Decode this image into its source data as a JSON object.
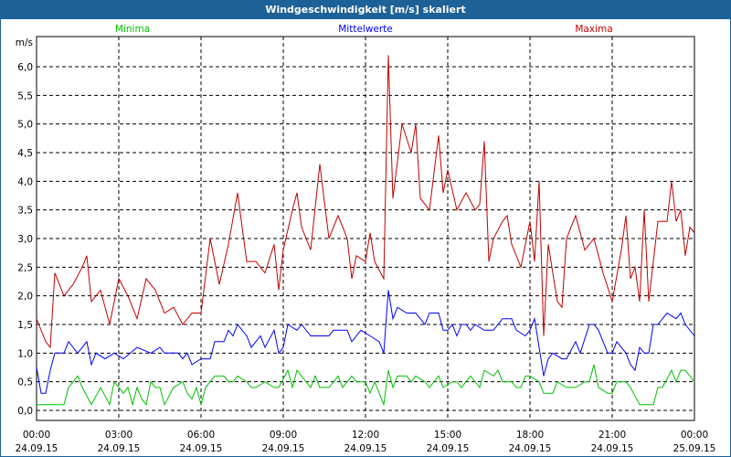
{
  "window": {
    "title": "Windgeschwindigkeit [m/s] skaliert"
  },
  "chart_data": {
    "type": "line",
    "title": "Windgeschwindigkeit [m/s] skaliert",
    "ylabel": "m/s",
    "ylim": [
      0,
      6.5
    ],
    "yticks": [
      "0,0",
      "0,5",
      "1,0",
      "1,5",
      "2,0",
      "2,5",
      "3,0",
      "3,5",
      "4,0",
      "4,5",
      "5,0",
      "5,5",
      "6,0"
    ],
    "xticks": [
      {
        "time": "00:00",
        "date": "24.09.15"
      },
      {
        "time": "03:00",
        "date": "24.09.15"
      },
      {
        "time": "06:00",
        "date": "24.09.15"
      },
      {
        "time": "09:00",
        "date": "24.09.15"
      },
      {
        "time": "12:00",
        "date": "24.09.15"
      },
      {
        "time": "15:00",
        "date": "24.09.15"
      },
      {
        "time": "18:00",
        "date": "24.09.15"
      },
      {
        "time": "21:00",
        "date": "24.09.15"
      },
      {
        "time": "00:00",
        "date": "25.09.15"
      }
    ],
    "grid": true,
    "legend_placement": "top",
    "series": [
      {
        "name": "Minima",
        "color": "#00c000",
        "points": [
          [
            "00:00",
            0.1
          ],
          [
            "01:00",
            0.1
          ],
          [
            "01:10",
            0.4
          ],
          [
            "01:30",
            0.6
          ],
          [
            "01:40",
            0.4
          ],
          [
            "02:00",
            0.1
          ],
          [
            "02:20",
            0.4
          ],
          [
            "02:40",
            0.1
          ],
          [
            "02:50",
            0.5
          ],
          [
            "03:10",
            0.3
          ],
          [
            "03:20",
            0.4
          ],
          [
            "03:30",
            0.1
          ],
          [
            "03:40",
            0.4
          ],
          [
            "03:50",
            0.2
          ],
          [
            "04:00",
            0.1
          ],
          [
            "04:10",
            0.5
          ],
          [
            "04:20",
            0.4
          ],
          [
            "04:30",
            0.4
          ],
          [
            "04:40",
            0.1
          ],
          [
            "05:00",
            0.4
          ],
          [
            "05:20",
            0.5
          ],
          [
            "05:30",
            0.3
          ],
          [
            "05:40",
            0.2
          ],
          [
            "05:50",
            0.4
          ],
          [
            "06:00",
            0.1
          ],
          [
            "06:10",
            0.4
          ],
          [
            "06:30",
            0.6
          ],
          [
            "06:50",
            0.6
          ],
          [
            "07:00",
            0.5
          ],
          [
            "07:10",
            0.5
          ],
          [
            "07:20",
            0.6
          ],
          [
            "07:40",
            0.5
          ],
          [
            "07:50",
            0.4
          ],
          [
            "08:00",
            0.4
          ],
          [
            "08:20",
            0.5
          ],
          [
            "08:40",
            0.4
          ],
          [
            "08:50",
            0.4
          ],
          [
            "09:10",
            0.7
          ],
          [
            "09:20",
            0.4
          ],
          [
            "09:30",
            0.7
          ],
          [
            "09:40",
            0.6
          ],
          [
            "10:00",
            0.4
          ],
          [
            "10:10",
            0.6
          ],
          [
            "10:20",
            0.4
          ],
          [
            "10:40",
            0.4
          ],
          [
            "11:00",
            0.6
          ],
          [
            "11:10",
            0.4
          ],
          [
            "11:30",
            0.6
          ],
          [
            "11:40",
            0.5
          ],
          [
            "12:00",
            0.5
          ],
          [
            "12:10",
            0.3
          ],
          [
            "12:20",
            0.5
          ],
          [
            "12:40",
            0.1
          ],
          [
            "12:50",
            0.7
          ],
          [
            "13:00",
            0.4
          ],
          [
            "13:10",
            0.6
          ],
          [
            "13:30",
            0.6
          ],
          [
            "13:40",
            0.5
          ],
          [
            "13:50",
            0.6
          ],
          [
            "14:10",
            0.5
          ],
          [
            "14:20",
            0.4
          ],
          [
            "14:30",
            0.5
          ],
          [
            "14:40",
            0.6
          ],
          [
            "14:50",
            0.4
          ],
          [
            "15:10",
            0.5
          ],
          [
            "15:20",
            0.5
          ],
          [
            "15:30",
            0.4
          ],
          [
            "15:40",
            0.5
          ],
          [
            "15:50",
            0.6
          ],
          [
            "16:10",
            0.4
          ],
          [
            "16:20",
            0.7
          ],
          [
            "16:40",
            0.6
          ],
          [
            "16:50",
            0.7
          ],
          [
            "17:00",
            0.5
          ],
          [
            "17:20",
            0.5
          ],
          [
            "17:30",
            0.4
          ],
          [
            "17:40",
            0.4
          ],
          [
            "17:50",
            0.6
          ],
          [
            "18:00",
            0.6
          ],
          [
            "18:20",
            0.5
          ],
          [
            "18:30",
            0.3
          ],
          [
            "18:50",
            0.3
          ],
          [
            "19:00",
            0.5
          ],
          [
            "19:20",
            0.4
          ],
          [
            "19:40",
            0.4
          ],
          [
            "20:00",
            0.5
          ],
          [
            "20:10",
            0.5
          ],
          [
            "20:20",
            0.8
          ],
          [
            "20:30",
            0.4
          ],
          [
            "20:50",
            0.3
          ],
          [
            "21:00",
            0.3
          ],
          [
            "21:10",
            0.5
          ],
          [
            "21:30",
            0.5
          ],
          [
            "21:40",
            0.4
          ],
          [
            "22:00",
            0.1
          ],
          [
            "22:30",
            0.1
          ],
          [
            "22:40",
            0.4
          ],
          [
            "22:50",
            0.4
          ],
          [
            "23:10",
            0.7
          ],
          [
            "23:20",
            0.5
          ],
          [
            "23:30",
            0.7
          ],
          [
            "23:40",
            0.7
          ],
          [
            "23:50",
            0.6
          ],
          [
            "24:00",
            0.5
          ]
        ]
      },
      {
        "name": "Mittelwerte",
        "color": "#0000ff",
        "points": [
          [
            "00:00",
            0.75
          ],
          [
            "00:10",
            0.3
          ],
          [
            "00:20",
            0.3
          ],
          [
            "00:30",
            0.7
          ],
          [
            "00:40",
            1.0
          ],
          [
            "01:00",
            1.0
          ],
          [
            "01:10",
            1.2
          ],
          [
            "01:30",
            1.0
          ],
          [
            "01:50",
            1.2
          ],
          [
            "02:00",
            0.8
          ],
          [
            "02:10",
            1.0
          ],
          [
            "02:30",
            0.9
          ],
          [
            "02:50",
            1.0
          ],
          [
            "03:10",
            0.9
          ],
          [
            "03:40",
            1.1
          ],
          [
            "04:10",
            1.0
          ],
          [
            "04:30",
            1.1
          ],
          [
            "04:40",
            1.0
          ],
          [
            "05:10",
            1.0
          ],
          [
            "05:20",
            0.9
          ],
          [
            "05:30",
            1.0
          ],
          [
            "05:40",
            0.8
          ],
          [
            "06:00",
            0.9
          ],
          [
            "06:20",
            0.9
          ],
          [
            "06:30",
            1.2
          ],
          [
            "06:50",
            1.2
          ],
          [
            "07:00",
            1.4
          ],
          [
            "07:10",
            1.3
          ],
          [
            "07:20",
            1.5
          ],
          [
            "07:40",
            1.3
          ],
          [
            "07:50",
            1.1
          ],
          [
            "08:10",
            1.3
          ],
          [
            "08:20",
            1.1
          ],
          [
            "08:40",
            1.4
          ],
          [
            "08:50",
            1.0
          ],
          [
            "09:00",
            1.1
          ],
          [
            "09:10",
            1.5
          ],
          [
            "09:30",
            1.4
          ],
          [
            "09:40",
            1.5
          ],
          [
            "10:00",
            1.3
          ],
          [
            "10:40",
            1.3
          ],
          [
            "10:50",
            1.4
          ],
          [
            "11:20",
            1.4
          ],
          [
            "11:30",
            1.2
          ],
          [
            "11:50",
            1.4
          ],
          [
            "12:10",
            1.3
          ],
          [
            "12:30",
            1.2
          ],
          [
            "12:40",
            1.0
          ],
          [
            "12:50",
            2.1
          ],
          [
            "13:00",
            1.6
          ],
          [
            "13:10",
            1.8
          ],
          [
            "13:30",
            1.7
          ],
          [
            "13:50",
            1.7
          ],
          [
            "14:00",
            1.6
          ],
          [
            "14:10",
            1.5
          ],
          [
            "14:20",
            1.7
          ],
          [
            "14:40",
            1.7
          ],
          [
            "14:50",
            1.4
          ],
          [
            "15:00",
            1.4
          ],
          [
            "15:10",
            1.5
          ],
          [
            "15:20",
            1.3
          ],
          [
            "15:30",
            1.5
          ],
          [
            "15:40",
            1.5
          ],
          [
            "15:50",
            1.4
          ],
          [
            "16:00",
            1.5
          ],
          [
            "16:20",
            1.4
          ],
          [
            "16:40",
            1.4
          ],
          [
            "17:00",
            1.6
          ],
          [
            "17:20",
            1.6
          ],
          [
            "17:30",
            1.4
          ],
          [
            "17:50",
            1.3
          ],
          [
            "18:00",
            1.4
          ],
          [
            "18:10",
            1.6
          ],
          [
            "18:30",
            0.6
          ],
          [
            "18:40",
            0.9
          ],
          [
            "18:50",
            1.0
          ],
          [
            "19:10",
            0.9
          ],
          [
            "19:20",
            0.9
          ],
          [
            "19:40",
            1.2
          ],
          [
            "19:50",
            1.0
          ],
          [
            "20:10",
            1.5
          ],
          [
            "20:20",
            1.5
          ],
          [
            "20:30",
            1.4
          ],
          [
            "20:50",
            1.0
          ],
          [
            "21:00",
            1.0
          ],
          [
            "21:10",
            1.2
          ],
          [
            "21:30",
            1.0
          ],
          [
            "21:40",
            0.8
          ],
          [
            "21:50",
            0.7
          ],
          [
            "22:00",
            1.1
          ],
          [
            "22:10",
            1.0
          ],
          [
            "22:20",
            1.0
          ],
          [
            "22:30",
            1.5
          ],
          [
            "22:40",
            1.5
          ],
          [
            "22:50",
            1.6
          ],
          [
            "23:00",
            1.7
          ],
          [
            "23:20",
            1.6
          ],
          [
            "23:30",
            1.7
          ],
          [
            "23:40",
            1.5
          ],
          [
            "24:00",
            1.3
          ]
        ]
      },
      {
        "name": "Maxima",
        "color": "#c00000",
        "points": [
          [
            "00:00",
            1.6
          ],
          [
            "00:20",
            1.2
          ],
          [
            "00:30",
            1.1
          ],
          [
            "00:40",
            2.4
          ],
          [
            "01:00",
            2.0
          ],
          [
            "01:20",
            2.2
          ],
          [
            "01:40",
            2.5
          ],
          [
            "01:50",
            2.7
          ],
          [
            "02:00",
            1.9
          ],
          [
            "02:20",
            2.1
          ],
          [
            "02:40",
            1.5
          ],
          [
            "03:00",
            2.3
          ],
          [
            "03:20",
            2.0
          ],
          [
            "03:40",
            1.6
          ],
          [
            "04:00",
            2.3
          ],
          [
            "04:20",
            2.1
          ],
          [
            "04:40",
            1.7
          ],
          [
            "05:00",
            1.8
          ],
          [
            "05:20",
            1.5
          ],
          [
            "05:40",
            1.7
          ],
          [
            "06:00",
            1.7
          ],
          [
            "06:20",
            3.0
          ],
          [
            "06:40",
            2.2
          ],
          [
            "07:00",
            2.9
          ],
          [
            "07:20",
            3.8
          ],
          [
            "07:40",
            2.6
          ],
          [
            "08:00",
            2.6
          ],
          [
            "08:20",
            2.4
          ],
          [
            "08:40",
            2.9
          ],
          [
            "08:50",
            2.1
          ],
          [
            "09:00",
            2.8
          ],
          [
            "09:20",
            3.5
          ],
          [
            "09:30",
            3.8
          ],
          [
            "09:40",
            3.2
          ],
          [
            "10:00",
            2.8
          ],
          [
            "10:20",
            4.3
          ],
          [
            "10:40",
            3.0
          ],
          [
            "11:00",
            3.4
          ],
          [
            "11:20",
            3.0
          ],
          [
            "11:30",
            2.3
          ],
          [
            "11:40",
            2.7
          ],
          [
            "12:00",
            2.6
          ],
          [
            "12:10",
            3.1
          ],
          [
            "12:20",
            2.6
          ],
          [
            "12:40",
            2.3
          ],
          [
            "12:50",
            6.2
          ],
          [
            "13:00",
            3.7
          ],
          [
            "13:20",
            5.0
          ],
          [
            "13:40",
            4.5
          ],
          [
            "13:50",
            5.0
          ],
          [
            "14:00",
            3.7
          ],
          [
            "14:20",
            3.5
          ],
          [
            "14:40",
            4.8
          ],
          [
            "14:50",
            3.8
          ],
          [
            "15:00",
            4.2
          ],
          [
            "15:20",
            3.5
          ],
          [
            "15:40",
            3.8
          ],
          [
            "16:00",
            3.5
          ],
          [
            "16:10",
            3.6
          ],
          [
            "16:20",
            4.7
          ],
          [
            "16:30",
            2.6
          ],
          [
            "16:40",
            3.0
          ],
          [
            "17:00",
            3.3
          ],
          [
            "17:10",
            3.4
          ],
          [
            "17:20",
            2.9
          ],
          [
            "17:40",
            2.5
          ],
          [
            "18:00",
            3.3
          ],
          [
            "18:10",
            2.6
          ],
          [
            "18:20",
            4.0
          ],
          [
            "18:30",
            1.3
          ],
          [
            "18:40",
            2.9
          ],
          [
            "19:00",
            1.9
          ],
          [
            "19:10",
            1.8
          ],
          [
            "19:20",
            3.0
          ],
          [
            "19:40",
            3.4
          ],
          [
            "20:00",
            2.8
          ],
          [
            "20:20",
            3.0
          ],
          [
            "20:40",
            2.4
          ],
          [
            "21:00",
            1.9
          ],
          [
            "21:20",
            2.8
          ],
          [
            "21:30",
            3.4
          ],
          [
            "21:40",
            2.3
          ],
          [
            "21:50",
            2.5
          ],
          [
            "22:00",
            1.9
          ],
          [
            "22:10",
            3.5
          ],
          [
            "22:20",
            1.9
          ],
          [
            "22:40",
            3.3
          ],
          [
            "23:00",
            3.3
          ],
          [
            "23:10",
            4.0
          ],
          [
            "23:20",
            3.3
          ],
          [
            "23:30",
            3.5
          ],
          [
            "23:40",
            2.7
          ],
          [
            "23:50",
            3.2
          ],
          [
            "24:00",
            3.1
          ]
        ]
      }
    ]
  }
}
